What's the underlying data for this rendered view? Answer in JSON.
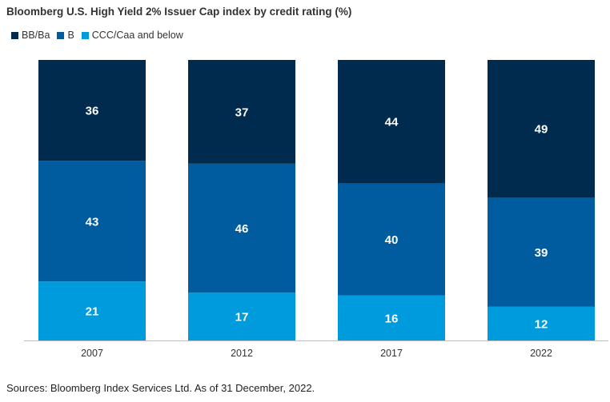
{
  "chart_data": {
    "type": "bar",
    "stacked": true,
    "stacked_to": 100,
    "title": "Bloomberg U.S. High Yield 2% Issuer Cap index by credit rating (%)",
    "categories": [
      "2007",
      "2012",
      "2017",
      "2022"
    ],
    "series": [
      {
        "name": "BB/Ba",
        "values": [
          36,
          37,
          44,
          49
        ],
        "color": "#002a4e"
      },
      {
        "name": "B",
        "values": [
          43,
          46,
          40,
          39
        ],
        "color": "#005c9e"
      },
      {
        "name": "CCC/Caa and below",
        "values": [
          21,
          17,
          16,
          12
        ],
        "color": "#009bdd"
      }
    ],
    "legend_position": "top-left",
    "grid": false,
    "ylim": [
      0,
      100
    ],
    "label_color": "#ffffff"
  },
  "source_note": "Sources: Bloomberg Index Services Ltd. As of 31 December, 2022."
}
